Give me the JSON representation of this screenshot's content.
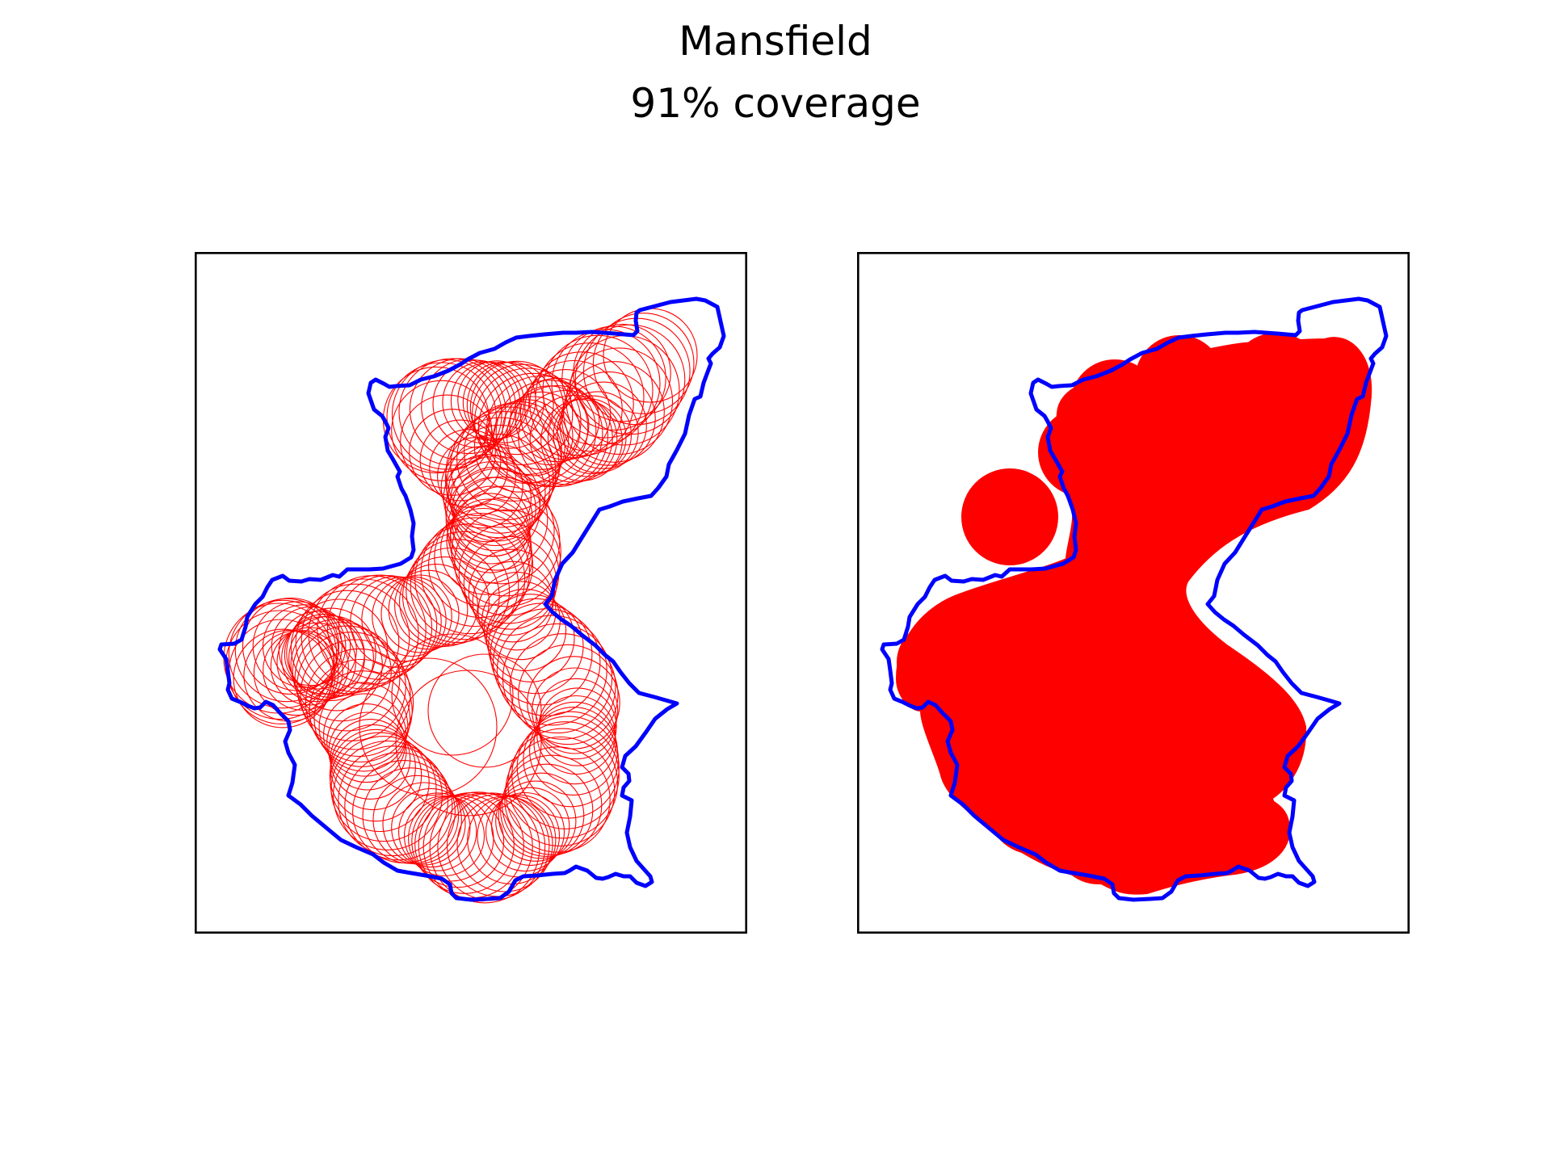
{
  "figure": {
    "title": "Mansfield",
    "subtitle": "91% coverage",
    "colors": {
      "boundary": "#0000ff",
      "coverage": "#ff0000",
      "frame": "#000000",
      "background": "#ffffff"
    },
    "panels": [
      {
        "name": "circles-panel",
        "style": "outline circles"
      },
      {
        "name": "filled-panel",
        "style": "filled union"
      }
    ]
  }
}
